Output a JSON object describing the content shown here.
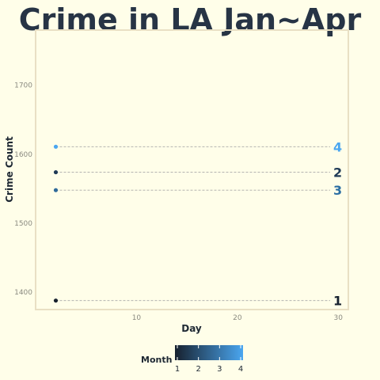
{
  "chart_data": {
    "type": "scatter",
    "title": "Crime in LA Jan~Apr",
    "xlabel": "Day",
    "ylabel": "Crime Count",
    "xlim": [
      0,
      31
    ],
    "ylim": [
      1375,
      1780
    ],
    "x_ticks": [
      10,
      20,
      30
    ],
    "y_ticks": [
      1400,
      1500,
      1600,
      1700
    ],
    "grid": false,
    "series": [
      {
        "name": "1",
        "month": 1,
        "color": "#17212e",
        "label_color": "#17212e",
        "x": 2,
        "y": 1388
      },
      {
        "name": "2",
        "month": 2,
        "color": "#1f3a56",
        "label_color": "#1f3a56",
        "x": 2,
        "y": 1574
      },
      {
        "name": "3",
        "month": 3,
        "color": "#2f6a9a",
        "label_color": "#2c6fa3",
        "x": 2,
        "y": 1548
      },
      {
        "name": "4",
        "month": 4,
        "color": "#4aa6f0",
        "label_color": "#4aa6f0",
        "x": 2,
        "y": 1611
      }
    ],
    "legend": {
      "title": "Month",
      "placement": "bottom",
      "ticks": [
        "1",
        "2",
        "3",
        "4"
      ],
      "gradient": [
        "#17212e",
        "#4aa6f0"
      ]
    }
  }
}
